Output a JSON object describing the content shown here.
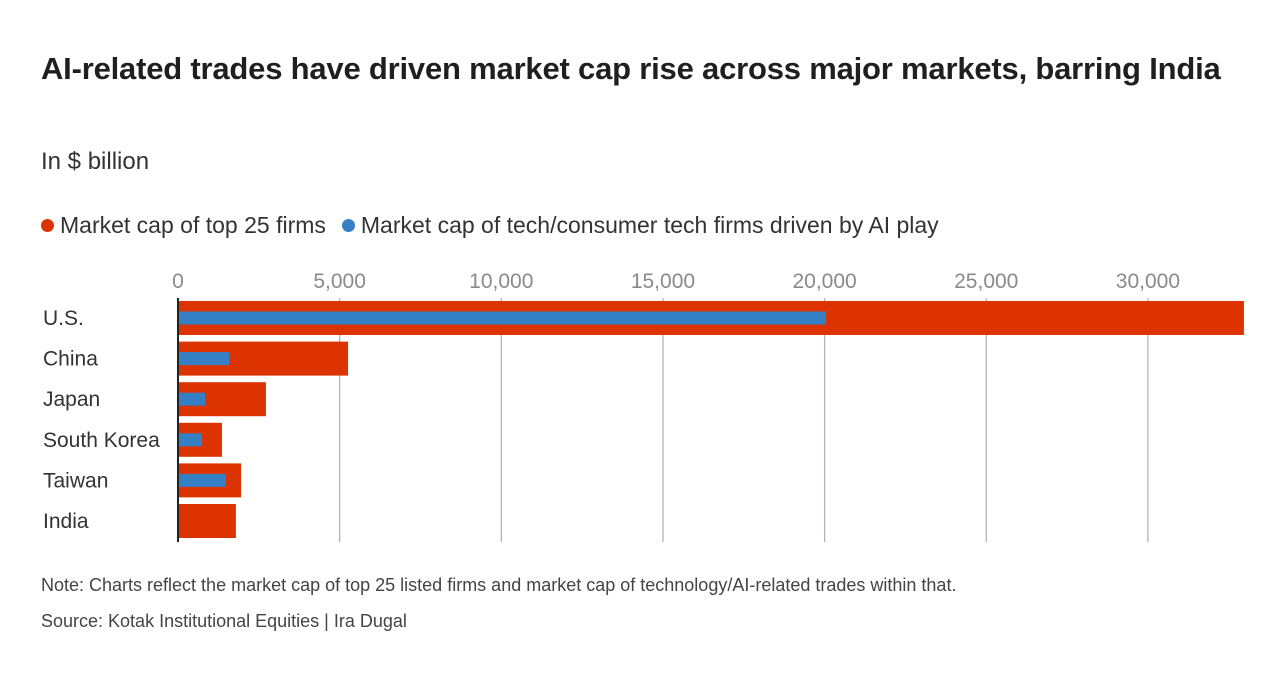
{
  "chart_data": {
    "type": "bar",
    "orientation": "horizontal",
    "title": "AI-related trades have driven market cap rise across major markets, barring India",
    "subtitle": "In $ billion",
    "xlabel": "",
    "ylabel": "",
    "categories": [
      "U.S.",
      "China",
      "Japan",
      "South Korea",
      "Taiwan",
      "India"
    ],
    "series": [
      {
        "name": "Market cap of top 25 firms",
        "color": "#dd3300",
        "values": [
          32970,
          5260,
          2720,
          1360,
          1950,
          1790
        ]
      },
      {
        "name": "Market cap of tech/consumer tech firms driven by AI play",
        "color": "#3580c4",
        "values": [
          20040,
          1580,
          840,
          740,
          1480,
          null
        ]
      }
    ],
    "xlim": [
      0,
      32970
    ],
    "xticks": [
      0,
      5000,
      10000,
      15000,
      20000,
      25000,
      30000
    ],
    "xtick_labels": [
      "0",
      "5,000",
      "10,000",
      "15,000",
      "20,000",
      "25,000",
      "30,000"
    ],
    "grid": true,
    "legend_position": "top-left"
  },
  "note": "Note: Charts reflect the market cap of top 25 listed firms and market cap of technology/AI-related trades within that.",
  "source": "Source: Kotak Institutional Equities | Ira Dugal"
}
